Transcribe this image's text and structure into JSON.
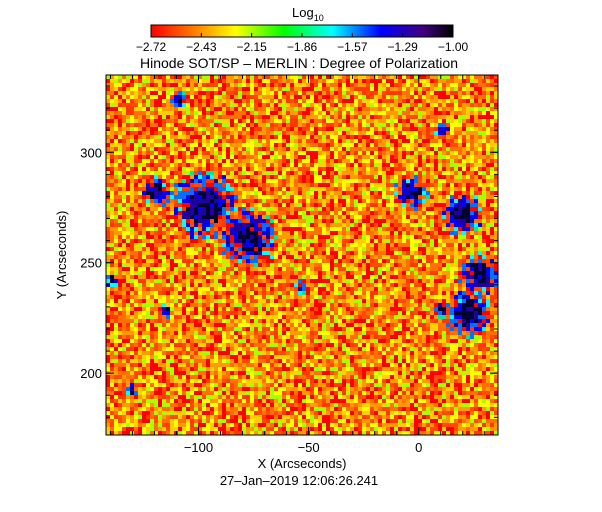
{
  "chart_data": {
    "type": "heatmap",
    "title": "Hinode SOT/SP – MERLIN : Degree of Polarization",
    "xlabel": "X (Arcseconds)",
    "ylabel": "Y (Arcseconds)",
    "timestamp": "27–Jan–2019 12:06:26.241",
    "colorbar": {
      "label": "Log",
      "label_subscript": "10",
      "range": [
        -2.72,
        -1.0
      ],
      "ticks": [
        "−2.72",
        "−2.43",
        "−2.15",
        "−1.86",
        "−1.57",
        "−1.29",
        "−1.00"
      ],
      "colormap": "rainbow"
    },
    "x_ticks": [
      {
        "value": -100,
        "label": "−100"
      },
      {
        "value": -50,
        "label": "−50"
      },
      {
        "value": 0,
        "label": "0"
      }
    ],
    "y_ticks": [
      {
        "value": 200,
        "label": "200"
      },
      {
        "value": 250,
        "label": "250"
      },
      {
        "value": 300,
        "label": "300"
      }
    ],
    "xlim": [
      -142,
      36
    ],
    "ylim": [
      172,
      335
    ],
    "colors": {
      "background_field": "#ff3800",
      "colormap_stops": [
        "#ff0000",
        "#ff7a00",
        "#ffff00",
        "#00ff00",
        "#00ffff",
        "#0000ff",
        "#400080",
        "#000000"
      ]
    }
  }
}
